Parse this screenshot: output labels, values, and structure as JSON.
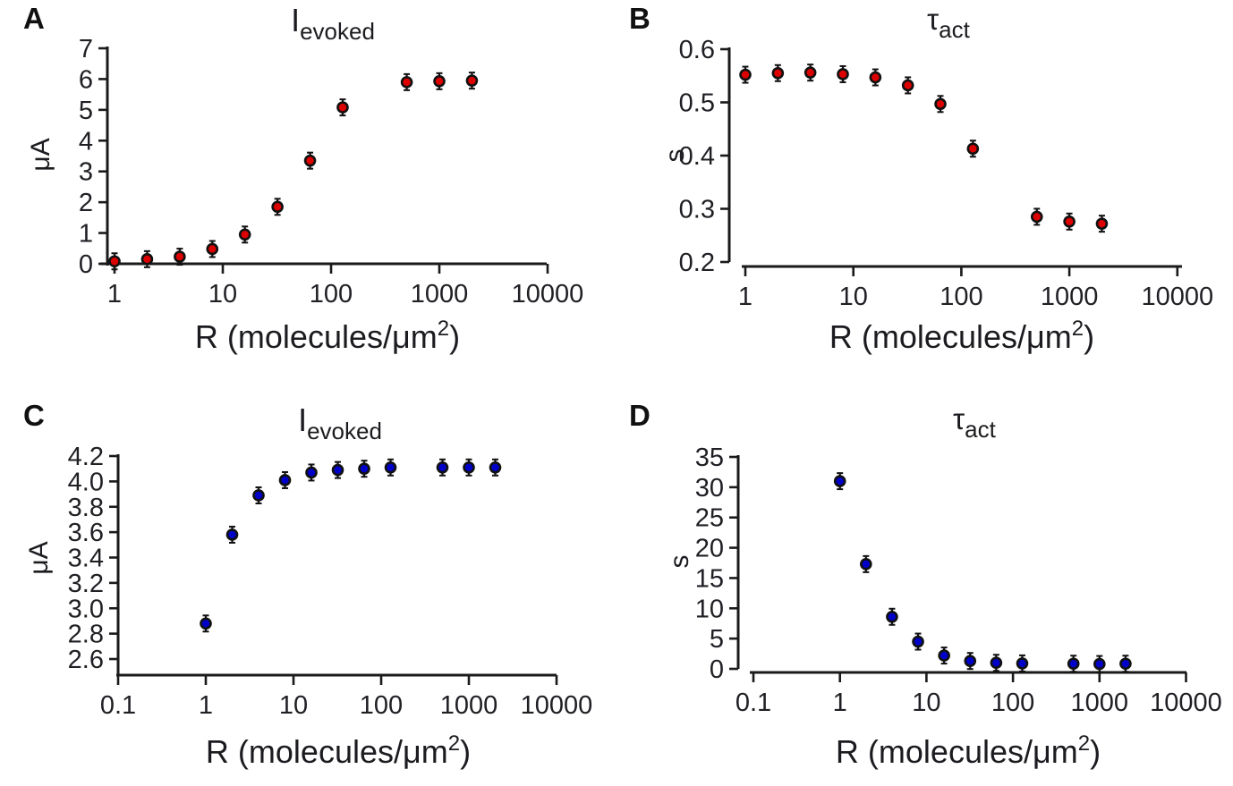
{
  "figure": {
    "background": "#ffffff",
    "xlabel_prefix": "R (molecules/μm",
    "xlabel_sup": "2",
    "xlabel_suffix": ")"
  },
  "panels": [
    {
      "letter": "A",
      "title_main": "I",
      "title_sub": "evoked",
      "ylabel": "μA"
    },
    {
      "letter": "B",
      "title_main": "τ",
      "title_sub": "act",
      "ylabel": "s"
    },
    {
      "letter": "C",
      "title_main": "I",
      "title_sub": "evoked",
      "ylabel": "μA"
    },
    {
      "letter": "D",
      "title_main": "τ",
      "title_sub": "act",
      "ylabel": "s"
    }
  ],
  "chart_data": [
    {
      "type": "scatter",
      "panel": "A",
      "title": "I_evoked",
      "xlabel": "R (molecules/μm2)",
      "ylabel": "μA",
      "xscale": "log",
      "xlim": [
        1,
        10000
      ],
      "ylim": [
        0,
        7
      ],
      "xtick_values": [
        1,
        10,
        100,
        1000,
        10000
      ],
      "xtick_labels": [
        "1",
        "10",
        "100",
        "1000",
        "10000"
      ],
      "ytick_values": [
        0,
        1,
        2,
        3,
        4,
        5,
        6,
        7
      ],
      "ytick_labels": [
        "0",
        "1",
        "2",
        "3",
        "4",
        "5",
        "6",
        "7"
      ],
      "marker_color": "#dd0000",
      "marker_outline": "#111111",
      "x": [
        1,
        2,
        4,
        8,
        16,
        32,
        64,
        128,
        500,
        1000,
        2000
      ],
      "y": [
        0.08,
        0.15,
        0.23,
        0.48,
        0.95,
        1.85,
        3.35,
        5.08,
        5.9,
        5.93,
        5.95
      ]
    },
    {
      "type": "scatter",
      "panel": "B",
      "title": "τ_act",
      "xlabel": "R (molecules/μm2)",
      "ylabel": "s",
      "xscale": "log",
      "xlim": [
        1,
        10000
      ],
      "ylim": [
        0.2,
        0.6
      ],
      "xtick_values": [
        1,
        10,
        100,
        1000,
        10000
      ],
      "xtick_labels": [
        "1",
        "10",
        "100",
        "1000",
        "10000"
      ],
      "ytick_values": [
        0.2,
        0.3,
        0.4,
        0.5,
        0.6
      ],
      "ytick_labels": [
        "0.2",
        "0.3",
        "0.4",
        "0.5",
        "0.6"
      ],
      "marker_color": "#dd0000",
      "marker_outline": "#111111",
      "x": [
        1,
        2,
        4,
        8,
        16,
        32,
        64,
        128,
        500,
        1000,
        2000
      ],
      "y": [
        0.552,
        0.555,
        0.556,
        0.553,
        0.547,
        0.532,
        0.497,
        0.413,
        0.285,
        0.276,
        0.272
      ]
    },
    {
      "type": "scatter",
      "panel": "C",
      "title": "I_evoked",
      "xlabel": "R (molecules/μm2)",
      "ylabel": "μA",
      "xscale": "log",
      "xlim": [
        0.1,
        10000
      ],
      "ylim": [
        2.5,
        4.2
      ],
      "xtick_values": [
        0.1,
        1,
        10,
        100,
        1000,
        10000
      ],
      "xtick_labels": [
        "0.1",
        "1",
        "10",
        "100",
        "1000",
        "10000"
      ],
      "ytick_values": [
        2.6,
        2.8,
        3.0,
        3.2,
        3.4,
        3.6,
        3.8,
        4.0,
        4.2
      ],
      "ytick_labels": [
        "2.6",
        "2.8",
        "3.0",
        "3.2",
        "3.4",
        "3.6",
        "3.8",
        "4.0",
        "4.2"
      ],
      "marker_color": "#0000c8",
      "marker_outline": "#111111",
      "x": [
        1,
        2,
        4,
        8,
        16,
        32,
        64,
        128,
        500,
        1000,
        2000
      ],
      "y": [
        2.88,
        3.58,
        3.89,
        4.01,
        4.07,
        4.09,
        4.1,
        4.11,
        4.11,
        4.11,
        4.11
      ]
    },
    {
      "type": "scatter",
      "panel": "D",
      "title": "τ_act",
      "xlabel": "R (molecules/μm2)",
      "ylabel": "s",
      "xscale": "log",
      "xlim": [
        0.1,
        10000
      ],
      "ylim": [
        0,
        35
      ],
      "xtick_values": [
        0.1,
        1,
        10,
        100,
        1000,
        10000
      ],
      "xtick_labels": [
        "0.1",
        "1",
        "10",
        "100",
        "1000",
        "10000"
      ],
      "ytick_values": [
        0,
        5,
        10,
        15,
        20,
        25,
        30,
        35
      ],
      "ytick_labels": [
        "0",
        "5",
        "10",
        "15",
        "20",
        "25",
        "30",
        "35"
      ],
      "marker_color": "#0000c8",
      "marker_outline": "#111111",
      "x": [
        1,
        2,
        4,
        8,
        16,
        32,
        64,
        128,
        500,
        1000,
        2000
      ],
      "y": [
        31.0,
        17.3,
        8.6,
        4.5,
        2.2,
        1.3,
        1.0,
        0.9,
        0.85,
        0.8,
        0.85
      ]
    }
  ]
}
